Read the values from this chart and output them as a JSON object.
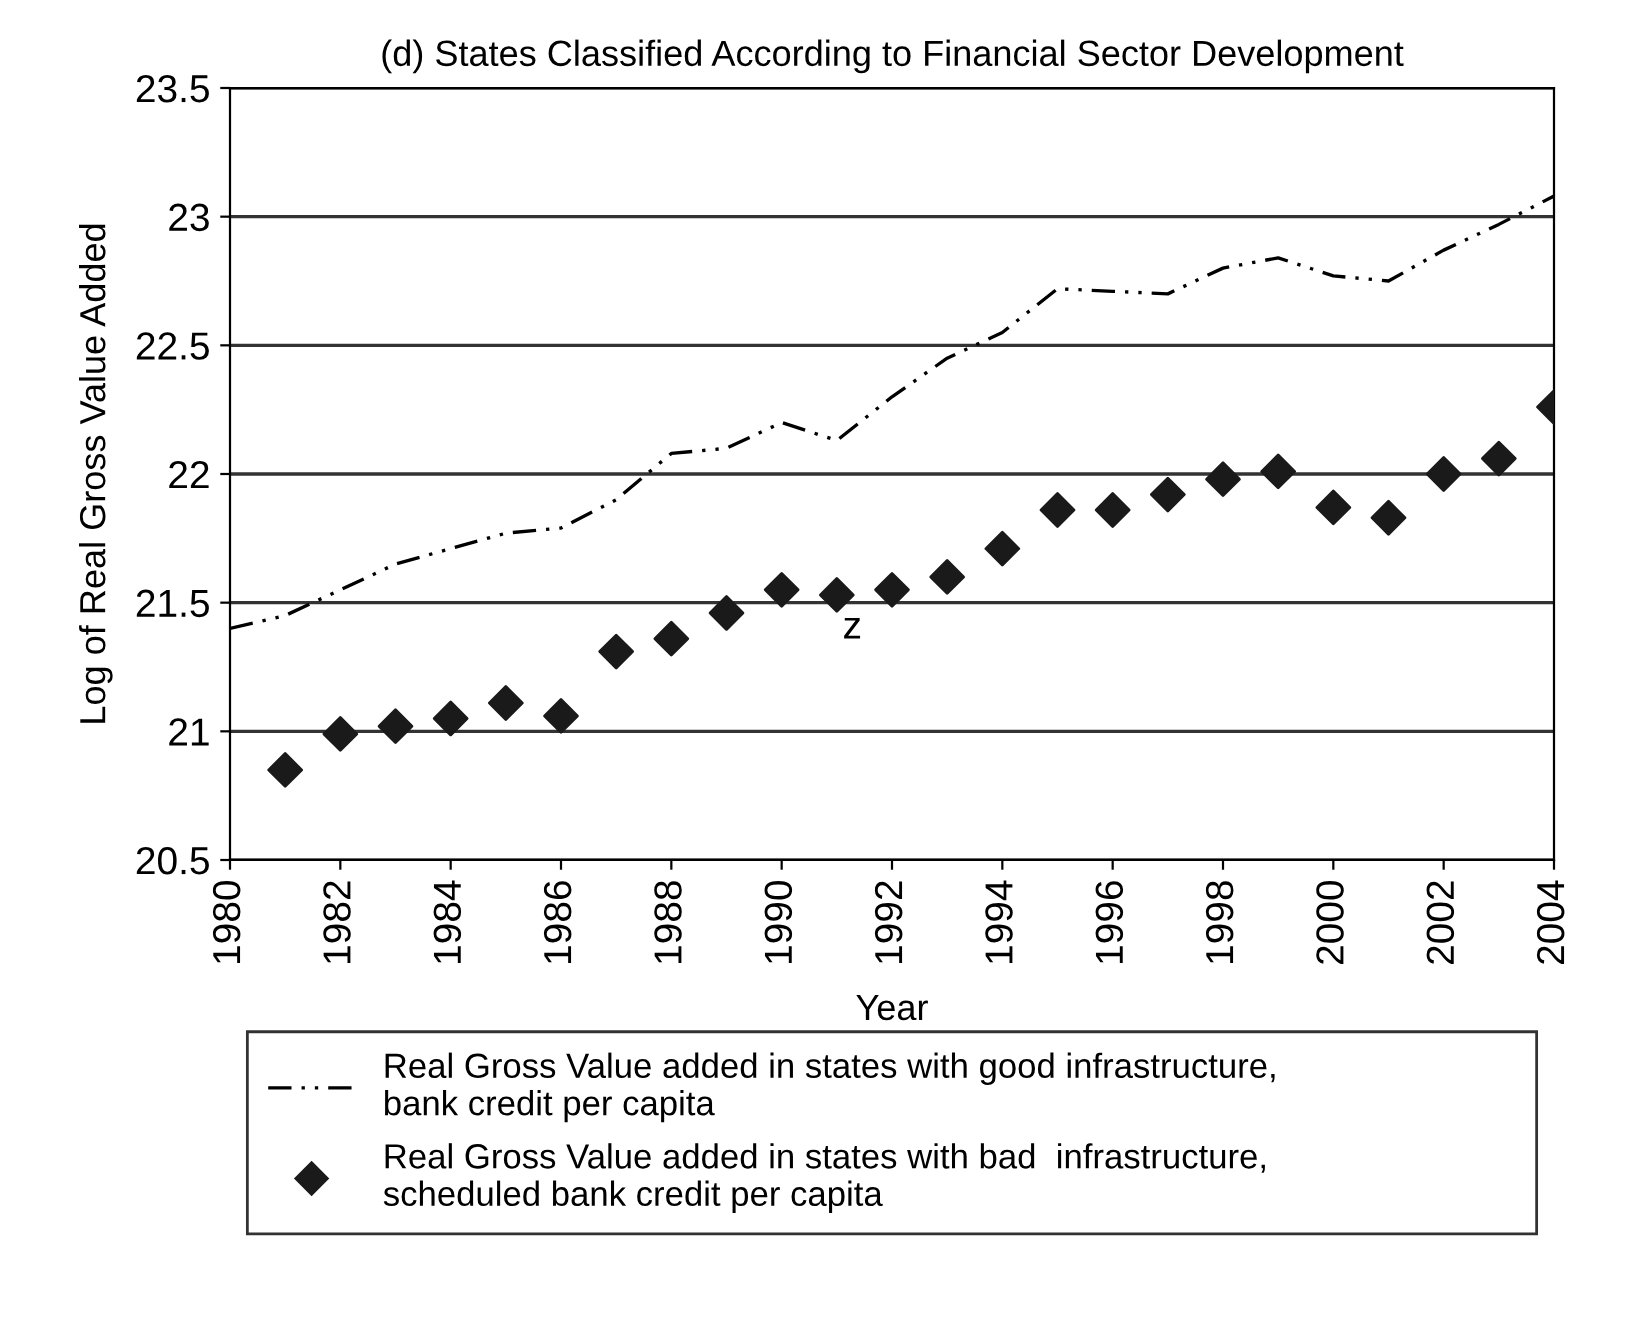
{
  "chart_data": {
    "type": "line",
    "title": "(d) States Classified According to Financial Sector Development",
    "xlabel": "Year",
    "ylabel": "Log of Real Gross Value Added",
    "series": [
      {
        "name": "Real Gross Value added in states with good infrastructure,\nbank credit per capita",
        "color": "#000000",
        "line_style": "dashdot",
        "marker": "none",
        "x": [
          1980,
          1981,
          1982,
          1983,
          1984,
          1985,
          1986,
          1987,
          1988,
          1989,
          1990,
          1991,
          1992,
          1993,
          1994,
          1995,
          1996,
          1997,
          1998,
          1999,
          2000,
          2001,
          2002,
          2003,
          2004
        ],
        "values": [
          21.4,
          21.45,
          21.55,
          21.65,
          21.71,
          21.77,
          21.79,
          21.9,
          22.08,
          22.1,
          22.2,
          22.13,
          22.3,
          22.45,
          22.55,
          22.72,
          22.71,
          22.7,
          22.8,
          22.84,
          22.77,
          22.75,
          22.87,
          22.97,
          23.08
        ]
      },
      {
        "name": "Real Gross Value added in states with bad  infrastructure,\nscheduled bank credit per capita",
        "color": "#1a1a1a",
        "type": "scatter",
        "marker": "diamond",
        "x": [
          1981,
          1982,
          1983,
          1984,
          1985,
          1986,
          1987,
          1988,
          1989,
          1990,
          1991,
          1992,
          1993,
          1994,
          1995,
          1996,
          1997,
          1998,
          1999,
          2000,
          2001,
          2002,
          2003,
          2004
        ],
        "values": [
          20.85,
          20.99,
          21.02,
          21.05,
          21.11,
          21.06,
          21.31,
          21.36,
          21.46,
          21.55,
          21.53,
          21.55,
          21.6,
          21.71,
          21.86,
          21.86,
          21.92,
          21.98,
          22.01,
          21.87,
          21.83,
          22.0,
          22.06,
          22.26
        ]
      }
    ],
    "annotations": [
      "z"
    ],
    "xlim": [
      1980,
      2004
    ],
    "xticks": [
      1980,
      1982,
      1984,
      1986,
      1988,
      1990,
      1992,
      1994,
      1996,
      1998,
      2000,
      2002,
      2004
    ],
    "ylim": [
      20.5,
      23.5
    ],
    "yticks": [
      20.5,
      21,
      21.5,
      22,
      22.5,
      23,
      23.5
    ],
    "grid": "y",
    "legend": "bottom"
  }
}
